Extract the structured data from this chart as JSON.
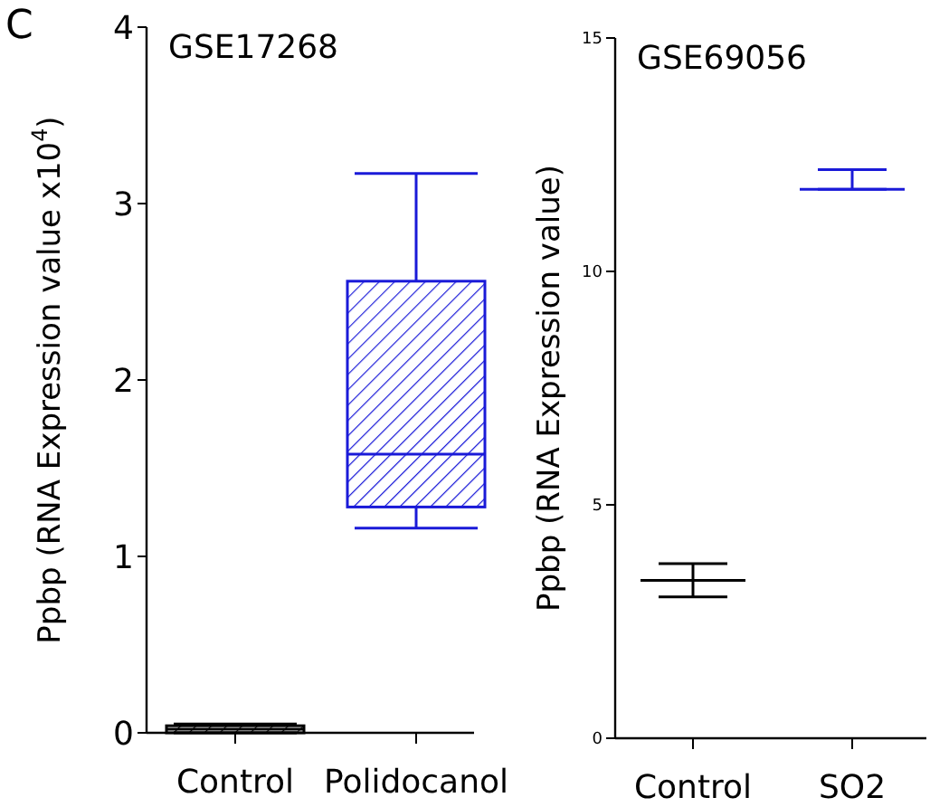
{
  "chart_data": [
    {
      "type": "box",
      "title": "GSE17268",
      "ylabel": "Ppbp (RNA Expression value x10$^{4}$)",
      "annotations": [
        "C"
      ],
      "categories": [
        "Control",
        "Polidocanol"
      ],
      "colors": [
        "#000000",
        "#1a1ad8"
      ],
      "ylim": [
        0,
        4
      ],
      "yticks": [
        0,
        1,
        2,
        3,
        4
      ],
      "boxes": [
        {
          "low": 0,
          "q1": 0,
          "median": 0.02,
          "q3": 0.04,
          "high": 0.05
        },
        {
          "low": 1.16,
          "q1": 1.28,
          "median": 1.58,
          "q3": 2.56,
          "high": 3.17
        }
      ]
    },
    {
      "type": "box",
      "title": "GSE69056",
      "ylabel": "Ppbp (RNA Expression value)",
      "categories": [
        "Control",
        "SO2"
      ],
      "colors": [
        "#000000",
        "#1a1ad8"
      ],
      "ylim": [
        0,
        15
      ],
      "yticks": [
        0,
        5,
        10,
        15
      ],
      "boxes": [
        {
          "low": 3.03,
          "q1": 3.38,
          "median": 3.38,
          "q3": 3.38,
          "high": 3.74
        },
        {
          "low": 11.76,
          "q1": 11.76,
          "median": 11.76,
          "q3": 11.76,
          "high": 12.18
        }
      ]
    }
  ]
}
